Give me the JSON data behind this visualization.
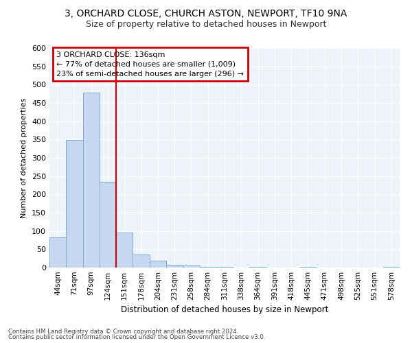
{
  "title1": "3, ORCHARD CLOSE, CHURCH ASTON, NEWPORT, TF10 9NA",
  "title2": "Size of property relative to detached houses in Newport",
  "xlabel": "Distribution of detached houses by size in Newport",
  "ylabel": "Number of detached properties",
  "categories": [
    "44sqm",
    "71sqm",
    "97sqm",
    "124sqm",
    "151sqm",
    "178sqm",
    "204sqm",
    "231sqm",
    "258sqm",
    "284sqm",
    "311sqm",
    "338sqm",
    "364sqm",
    "391sqm",
    "418sqm",
    "445sqm",
    "471sqm",
    "498sqm",
    "525sqm",
    "551sqm",
    "578sqm"
  ],
  "values": [
    83,
    348,
    478,
    234,
    96,
    35,
    18,
    7,
    5,
    1,
    1,
    0,
    1,
    0,
    0,
    1,
    0,
    0,
    0,
    0,
    1
  ],
  "bar_color": "#c5d8f0",
  "bar_edge_color": "#7aadd4",
  "vline_x": 3.5,
  "vline_color": "#cc0000",
  "annotation_text": "3 ORCHARD CLOSE: 136sqm\n← 77% of detached houses are smaller (1,009)\n23% of semi-detached houses are larger (296) →",
  "annotation_box_color": "#cc0000",
  "footer1": "Contains HM Land Registry data © Crown copyright and database right 2024.",
  "footer2": "Contains public sector information licensed under the Open Government Licence v3.0.",
  "ylim": [
    0,
    600
  ],
  "yticks": [
    0,
    50,
    100,
    150,
    200,
    250,
    300,
    350,
    400,
    450,
    500,
    550,
    600
  ],
  "background_color": "#eef2f9",
  "grid_color": "#ffffff",
  "fig_bg": "#ffffff"
}
